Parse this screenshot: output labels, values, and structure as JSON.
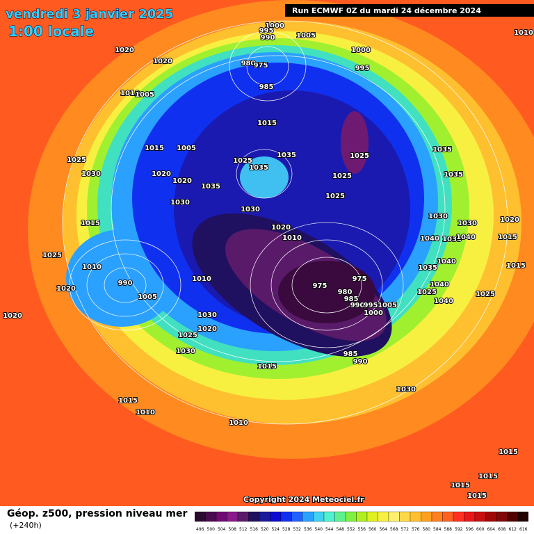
{
  "header": {
    "title": "vendredi 3 janvier 2025",
    "subtitle": "1:00 locale",
    "run": "Run ECMWF 0Z du mardi 24 décembre 2024"
  },
  "copyright": "Copyright 2024 Meteociel.fr",
  "footer": {
    "label": "Géop. z500, pression niveau mer",
    "lead": "(+240h)"
  },
  "legend": {
    "labels": [
      496,
      500,
      504,
      508,
      512,
      516,
      520,
      524,
      528,
      532,
      536,
      540,
      544,
      548,
      552,
      556,
      560,
      564,
      568,
      572,
      576,
      580,
      584,
      588,
      592,
      596,
      600,
      604,
      608,
      612,
      616
    ],
    "colors": [
      "#2a0a2e",
      "#4a0a4e",
      "#6e0a72",
      "#8a1a8a",
      "#5a1a6a",
      "#201060",
      "#1a1a9a",
      "#0a0ad0",
      "#1030f0",
      "#2060ff",
      "#2aa0ff",
      "#40d0f0",
      "#50f0d0",
      "#60f090",
      "#80f040",
      "#b0f020",
      "#e0f020",
      "#f8f040",
      "#fff070",
      "#ffd84a",
      "#ffc030",
      "#ffa020",
      "#ff8020",
      "#ff6020",
      "#ff3020",
      "#e81818",
      "#c81010",
      "#a00808",
      "#800808",
      "#500000",
      "#200000"
    ]
  },
  "isobar_labels": [
    1000,
    995,
    990,
    1005,
    1010,
    1020,
    1020,
    1000,
    995,
    980,
    975,
    985,
    1010,
    1005,
    1015,
    1015,
    1005,
    1025,
    1030,
    1025,
    1035,
    1035,
    1025,
    1025,
    1035,
    1035,
    1020,
    1020,
    1035,
    1025,
    1030,
    1030,
    1015,
    1030,
    1030,
    1020,
    1020,
    1010,
    1040,
    1035,
    1040,
    1015,
    1025,
    1010,
    1015,
    1035,
    1040,
    990,
    975,
    975,
    1010,
    1020,
    1005,
    980,
    985,
    990,
    995,
    1005,
    1000,
    1040,
    1025,
    1025,
    1040,
    1020,
    1030,
    1020,
    1025,
    1030,
    985,
    990,
    1015,
    1030,
    1015,
    1010,
    1010,
    1015,
    1015,
    1015,
    1015
  ]
}
